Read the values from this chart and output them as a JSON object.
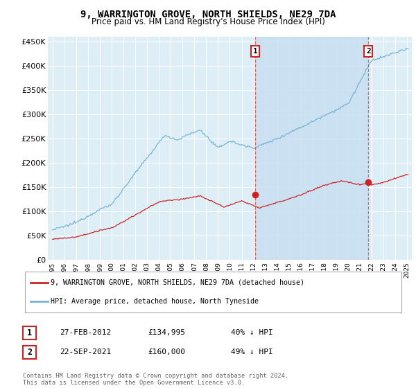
{
  "title": "9, WARRINGTON GROVE, NORTH SHIELDS, NE29 7DA",
  "subtitle": "Price paid vs. HM Land Registry's House Price Index (HPI)",
  "background_color": "#ffffff",
  "plot_bg_color": "#ddeef7",
  "grid_color": "#ffffff",
  "hpi_color": "#7ab3d4",
  "price_color": "#cc2222",
  "vline_color": "#dd4444",
  "shade_color": "#c8dff0",
  "marker1_x": 2012.15,
  "marker2_x": 2021.72,
  "legend_line1": "9, WARRINGTON GROVE, NORTH SHIELDS, NE29 7DA (detached house)",
  "legend_line2": "HPI: Average price, detached house, North Tyneside",
  "table_rows": [
    [
      "1",
      "27-FEB-2012",
      "£134,995",
      "40% ↓ HPI"
    ],
    [
      "2",
      "22-SEP-2021",
      "£160,000",
      "49% ↓ HPI"
    ]
  ],
  "footnote": "Contains HM Land Registry data © Crown copyright and database right 2024.\nThis data is licensed under the Open Government Licence v3.0.",
  "ylim": [
    0,
    460000
  ],
  "yticks": [
    0,
    50000,
    100000,
    150000,
    200000,
    250000,
    300000,
    350000,
    400000,
    450000
  ],
  "ytick_labels": [
    "£0",
    "£50K",
    "£100K",
    "£150K",
    "£200K",
    "£250K",
    "£300K",
    "£350K",
    "£400K",
    "£450K"
  ],
  "xlim_start": 1994.6,
  "xlim_end": 2025.4,
  "sale1_y": 134995,
  "sale2_y": 160000
}
